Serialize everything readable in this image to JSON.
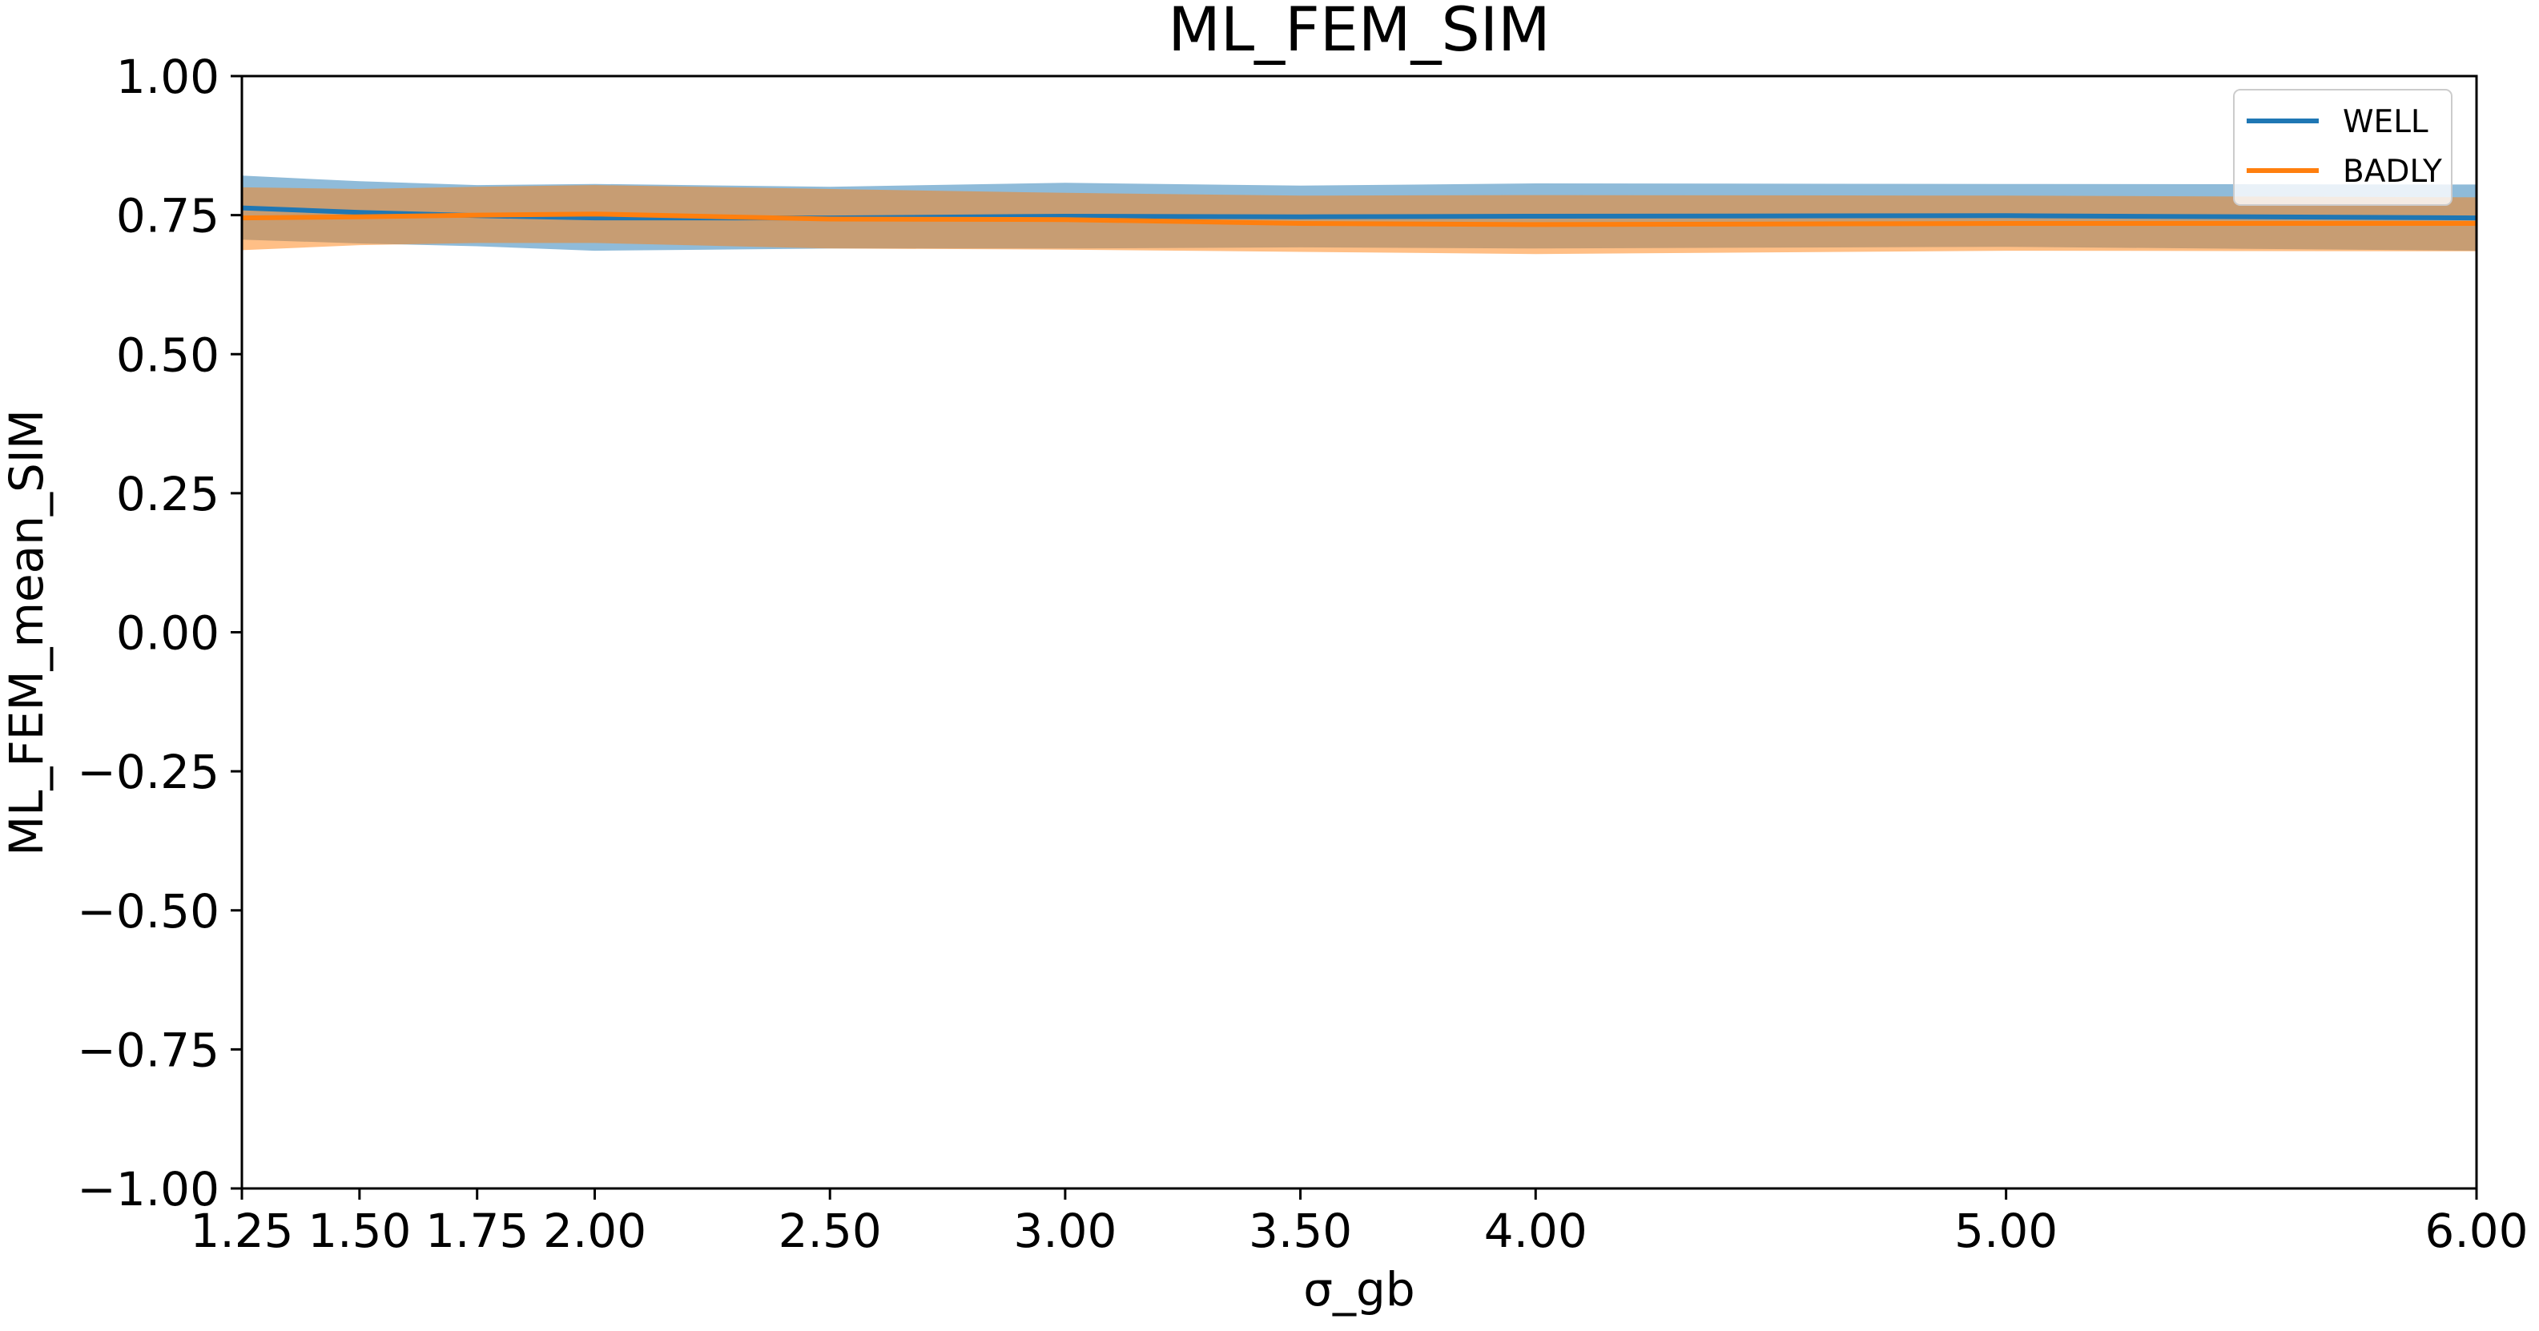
{
  "chart_data": {
    "type": "line",
    "title": "ML_FEM_SIM",
    "xlabel": "σ_gb",
    "ylabel": "ML_FEM_mean_SIM",
    "xlim": [
      1.25,
      6.0
    ],
    "ylim": [
      -1.0,
      1.0
    ],
    "x_ticks": [
      1.25,
      1.5,
      1.75,
      2.0,
      2.5,
      3.0,
      3.5,
      4.0,
      5.0,
      6.0
    ],
    "x_tick_labels": [
      "1.25",
      "1.50",
      "1.75",
      "2.00",
      "2.50",
      "3.00",
      "3.50",
      "4.00",
      "5.00",
      "6.00"
    ],
    "y_ticks": [
      -1.0,
      -0.75,
      -0.5,
      -0.25,
      0.0,
      0.25,
      0.5,
      0.75,
      1.0
    ],
    "y_tick_labels": [
      "−1.00",
      "−0.75",
      "−0.50",
      "−0.25",
      "0.00",
      "0.25",
      "0.50",
      "0.75",
      "1.00"
    ],
    "grid": false,
    "legend_position": "top-right",
    "x": [
      1.25,
      1.5,
      1.75,
      2.0,
      2.5,
      3.0,
      3.5,
      4.0,
      5.0,
      6.0
    ],
    "series": [
      {
        "name": "WELL",
        "color": "#1f77b4",
        "band_color": "#1f77b4",
        "values": [
          0.763,
          0.755,
          0.749,
          0.745,
          0.745,
          0.748,
          0.747,
          0.748,
          0.749,
          0.745
        ],
        "upper": [
          0.821,
          0.811,
          0.804,
          0.806,
          0.801,
          0.808,
          0.803,
          0.807,
          0.806,
          0.805
        ],
        "lower": [
          0.706,
          0.699,
          0.694,
          0.686,
          0.69,
          0.69,
          0.692,
          0.69,
          0.693,
          0.686
        ]
      },
      {
        "name": "BADLY",
        "color": "#ff7f0e",
        "band_color": "#ff7f0e",
        "values": [
          0.745,
          0.747,
          0.75,
          0.752,
          0.743,
          0.742,
          0.735,
          0.733,
          0.735,
          0.735
        ],
        "upper": [
          0.8,
          0.797,
          0.801,
          0.804,
          0.797,
          0.79,
          0.785,
          0.786,
          0.785,
          0.782
        ],
        "lower": [
          0.687,
          0.696,
          0.7,
          0.7,
          0.69,
          0.688,
          0.684,
          0.68,
          0.686,
          0.685
        ]
      }
    ]
  }
}
